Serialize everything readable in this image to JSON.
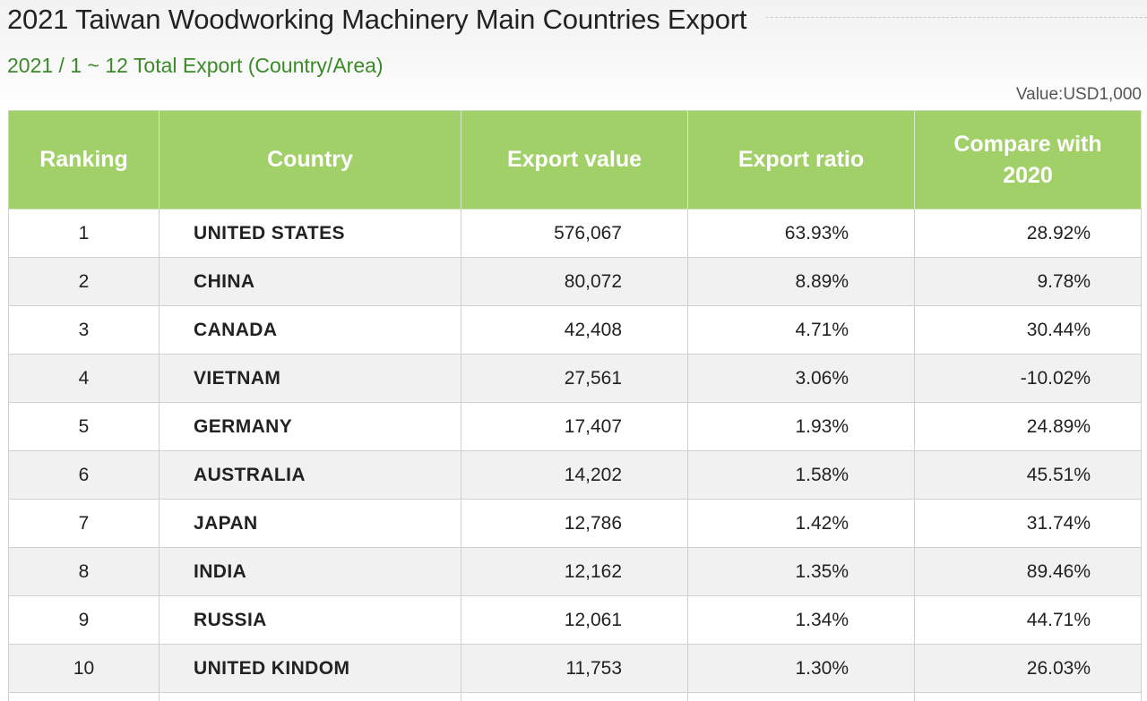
{
  "header": {
    "title": "2021 Taiwan Woodworking Machinery Main Countries Export",
    "subtitle": "2021 / 1 ~ 12 Total Export (Country/Area)",
    "unit": "Value:USD1,000"
  },
  "table": {
    "columns": {
      "ranking": "Ranking",
      "country": "Country",
      "export_value": "Export value",
      "export_ratio": "Export ratio",
      "compare_line1": "Compare with",
      "compare_line2": "2020"
    },
    "rows": [
      {
        "rank": "1",
        "country": "UNITED STATES",
        "value": "576,067",
        "ratio": "63.93%",
        "compare": "28.92%",
        "negative": false
      },
      {
        "rank": "2",
        "country": "CHINA",
        "value": "80,072",
        "ratio": "8.89%",
        "compare": "9.78%",
        "negative": false
      },
      {
        "rank": "3",
        "country": "CANADA",
        "value": "42,408",
        "ratio": "4.71%",
        "compare": "30.44%",
        "negative": false
      },
      {
        "rank": "4",
        "country": "VIETNAM",
        "value": "27,561",
        "ratio": "3.06%",
        "compare": "-10.02%",
        "negative": true
      },
      {
        "rank": "5",
        "country": "GERMANY",
        "value": "17,407",
        "ratio": "1.93%",
        "compare": "24.89%",
        "negative": false
      },
      {
        "rank": "6",
        "country": "AUSTRALIA",
        "value": "14,202",
        "ratio": "1.58%",
        "compare": "45.51%",
        "negative": false
      },
      {
        "rank": "7",
        "country": "JAPAN",
        "value": "12,786",
        "ratio": "1.42%",
        "compare": "31.74%",
        "negative": false
      },
      {
        "rank": "8",
        "country": "INDIA",
        "value": "12,162",
        "ratio": "1.35%",
        "compare": "89.46%",
        "negative": false
      },
      {
        "rank": "9",
        "country": "RUSSIA",
        "value": "12,061",
        "ratio": "1.34%",
        "compare": "44.71%",
        "negative": false
      },
      {
        "rank": "10",
        "country": "UNITED KINDOM",
        "value": "11,753",
        "ratio": "1.30%",
        "compare": "26.03%",
        "negative": false
      }
    ]
  },
  "colors": {
    "header_green": "#a1cf68",
    "subtitle_green": "#3a8a27",
    "negative_red": "#e03a2f",
    "stripe_gray": "#f1f1f1"
  }
}
